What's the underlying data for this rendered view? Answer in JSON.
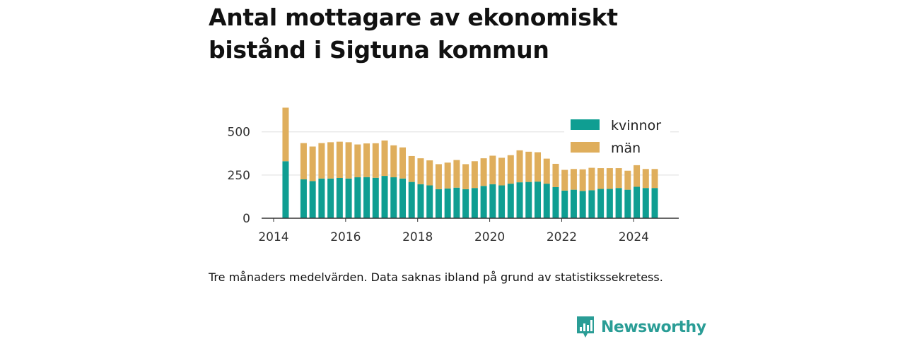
{
  "title": "Antal mottagare av ekonomiskt bistånd i Sigtuna kommun",
  "caption": "Tre månaders medelvärden. Data saknas ibland på grund av statistikssekretess.",
  "brand": {
    "name": "Newsworthy",
    "icon": "newsworthy-logo-icon",
    "color": "#2a9d96"
  },
  "colors": {
    "kvinnor": "#0f9e92",
    "man": "#dfae5c",
    "grid": "#dddddd",
    "axis": "#333333"
  },
  "chart_data": {
    "type": "bar",
    "stacked": true,
    "xlabel": "",
    "ylabel": "",
    "ylim": [
      0,
      650
    ],
    "yticks": [
      0,
      250,
      500
    ],
    "xlim": [
      "2013-09",
      "2025-04"
    ],
    "xticks": [
      "2014",
      "2016",
      "2018",
      "2020",
      "2022",
      "2024"
    ],
    "grid": true,
    "legend_position": "top-right",
    "x": [
      "2014-05",
      "2014-11",
      "2015-02",
      "2015-05",
      "2015-08",
      "2015-11",
      "2016-02",
      "2016-05",
      "2016-08",
      "2016-11",
      "2017-02",
      "2017-05",
      "2017-08",
      "2017-11",
      "2018-02",
      "2018-05",
      "2018-08",
      "2018-11",
      "2019-02",
      "2019-05",
      "2019-08",
      "2019-11",
      "2020-02",
      "2020-05",
      "2020-08",
      "2020-11",
      "2021-02",
      "2021-05",
      "2021-08",
      "2021-11",
      "2022-02",
      "2022-05",
      "2022-08",
      "2022-11",
      "2023-02",
      "2023-05",
      "2023-08",
      "2023-11",
      "2024-02",
      "2024-05",
      "2024-08"
    ],
    "series": [
      {
        "name": "kvinnor",
        "values": [
          330,
          225,
          215,
          230,
          230,
          233,
          230,
          237,
          238,
          234,
          245,
          237,
          230,
          210,
          197,
          190,
          168,
          172,
          177,
          168,
          175,
          187,
          197,
          190,
          200,
          208,
          210,
          212,
          200,
          180,
          160,
          165,
          158,
          162,
          170,
          170,
          175,
          165,
          182,
          175,
          175
        ]
      },
      {
        "name": "män",
        "values": [
          310,
          210,
          200,
          205,
          210,
          210,
          210,
          190,
          195,
          200,
          205,
          185,
          180,
          150,
          150,
          145,
          145,
          150,
          160,
          145,
          155,
          160,
          165,
          160,
          165,
          185,
          175,
          170,
          145,
          135,
          120,
          120,
          125,
          130,
          120,
          120,
          115,
          110,
          125,
          110,
          110
        ]
      }
    ]
  }
}
